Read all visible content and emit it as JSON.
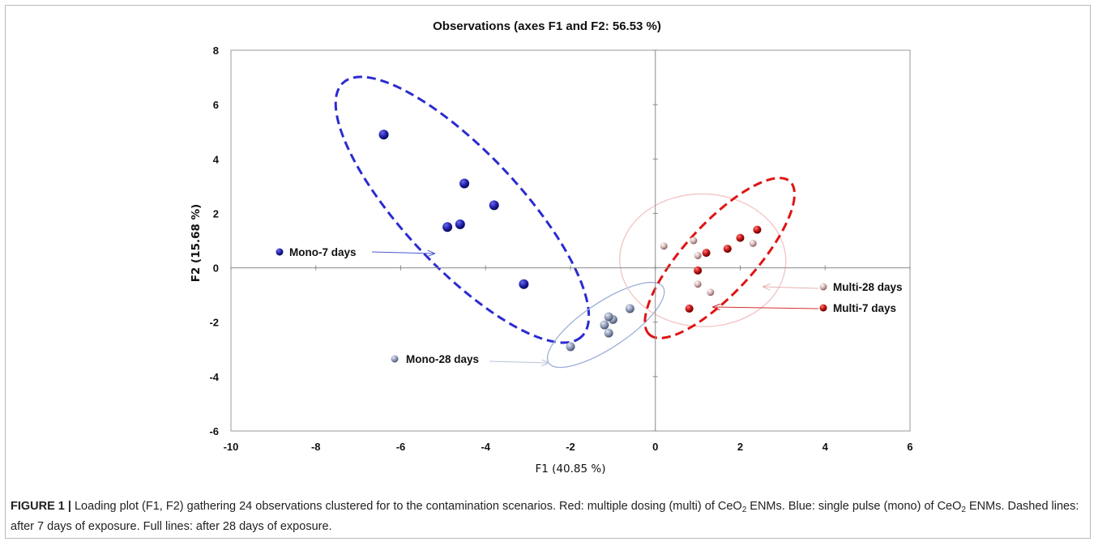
{
  "chart_data": {
    "type": "scatter",
    "title": "Observations (axes F1 and F2: 56.53 %)",
    "xlabel": "F1 (40.85 %)",
    "ylabel": "F2 (15.68 %)",
    "xlim": [
      -10,
      6
    ],
    "ylim": [
      -6,
      8
    ],
    "xticks": [
      -10,
      -8,
      -6,
      -4,
      -2,
      0,
      2,
      4,
      6
    ],
    "yticks": [
      -6,
      -4,
      -2,
      0,
      2,
      4,
      6,
      8
    ],
    "grid": false,
    "series": [
      {
        "name": "Mono-7 days",
        "color": "#1f1fa8",
        "points": [
          [
            -6.4,
            4.9
          ],
          [
            -4.5,
            3.1
          ],
          [
            -3.8,
            2.3
          ],
          [
            -4.9,
            1.5
          ],
          [
            -4.6,
            1.6
          ],
          [
            -3.1,
            -0.6
          ]
        ]
      },
      {
        "name": "Mono-28 days",
        "color": "#8a97b4",
        "points": [
          [
            -0.6,
            -1.5
          ],
          [
            -1.0,
            -1.9
          ],
          [
            -1.1,
            -1.8
          ],
          [
            -1.2,
            -2.1
          ],
          [
            -1.1,
            -2.4
          ],
          [
            -2.0,
            -2.9
          ]
        ]
      },
      {
        "name": "Multi-28 days",
        "color": "#cfaeae",
        "points": [
          [
            0.2,
            0.8
          ],
          [
            0.9,
            1.0
          ],
          [
            1.0,
            0.45
          ],
          [
            2.3,
            0.9
          ],
          [
            1.0,
            -0.6
          ],
          [
            1.3,
            -0.9
          ]
        ]
      },
      {
        "name": "Multi-7 days",
        "color": "#c10e0e",
        "points": [
          [
            2.4,
            1.4
          ],
          [
            2.0,
            1.1
          ],
          [
            1.7,
            0.7
          ],
          [
            1.2,
            0.55
          ],
          [
            1.0,
            -0.1
          ],
          [
            0.8,
            -1.5
          ]
        ]
      }
    ],
    "ellipses": [
      {
        "group": "Mono-7 days",
        "style": "dashed",
        "color": "#2b2bd0"
      },
      {
        "group": "Mono-28 days",
        "style": "solid",
        "color": "#9db0d8"
      },
      {
        "group": "Multi-28 days",
        "style": "solid",
        "color": "#f2c4c4"
      },
      {
        "group": "Multi-7 days",
        "style": "dashed",
        "color": "#e01414"
      }
    ],
    "legend_labels": [
      {
        "label": "Mono-7 days",
        "color": "#1f1fa8"
      },
      {
        "label": "Mono-28 days",
        "color": "#8a97b4"
      },
      {
        "label": "Multi-28 days",
        "color": "#cfaeae"
      },
      {
        "label": "Multi-7 days",
        "color": "#c10e0e"
      }
    ]
  },
  "caption": {
    "label": "FIGURE 1 |",
    "part1": " Loading plot (F1, F2) gathering 24 observations clustered for to the contamination scenarios. Red: multiple dosing (multi) of CeO",
    "sub1": "2",
    "part2": " ENMs. Blue: single pulse (mono) of CeO",
    "sub2": "2",
    "part3": " ENMs. Dashed lines: after 7 days of exposure. Full lines: after 28 days of exposure."
  }
}
